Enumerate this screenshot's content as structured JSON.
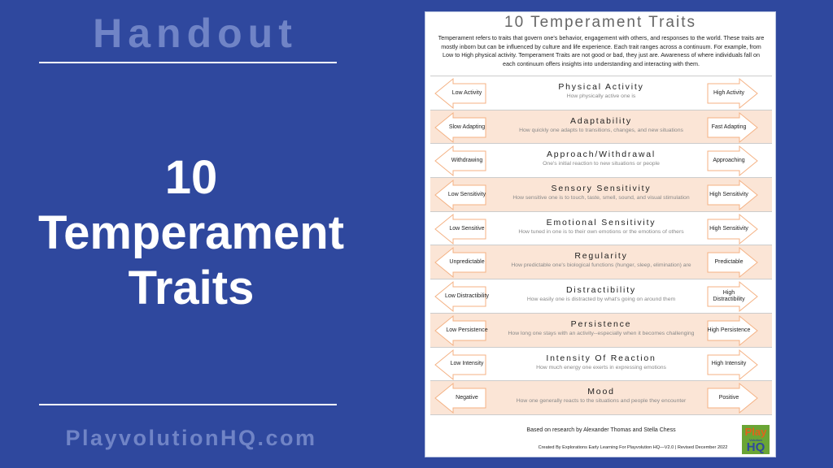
{
  "slide": {
    "heading": "Handout",
    "title_lines": [
      "10",
      "Temperament",
      "Traits"
    ],
    "website": "PlayvolutionHQ.com"
  },
  "document": {
    "title": "10 Temperament Traits",
    "intro": "Temperament refers to traits that govern one's behavior, engagement with others, and responses to the world. These traits are mostly inborn but can be influenced by culture and life experience. Each trait ranges across a continuum. For example, from Low to High physical activity. Temperament Traits are not good or bad, they just are. Awareness of where individuals fall on each continuum offers insights into understanding and interacting with them.",
    "traits": [
      {
        "name": "Physical Activity",
        "desc": "How physically active one is",
        "low": "Low Activity",
        "high": "High Activity"
      },
      {
        "name": "Adaptability",
        "desc": "How quickly one adapts to transitions, changes, and new situations",
        "low": "Slow Adapting",
        "high": "Fast Adapting"
      },
      {
        "name": "Approach/Withdrawal",
        "desc": "One's initial reaction to new situations or people",
        "low": "Withdrawing",
        "high": "Approaching"
      },
      {
        "name": "Sensory Sensitivity",
        "desc": "How sensitive one is to touch, taste, smell, sound, and visual stimulation",
        "low": "Low Sensitivity",
        "high": "High Sensitivity"
      },
      {
        "name": "Emotional Sensitivity",
        "desc": "How tuned in one is to their own emotions or the emotions of others",
        "low": "Low Sensitive",
        "high": "High Sensitivity"
      },
      {
        "name": "Regularity",
        "desc": "How predictable one's biological functions (hunger, sleep, elimination) are",
        "low": "Unpredictable",
        "high": "Predictable"
      },
      {
        "name": "Distractibility",
        "desc": "How easily one is distracted by what's going on around them",
        "low": "Low Distractibility",
        "high": "High Distractibility"
      },
      {
        "name": "Persistence",
        "desc": "How long one stays with an activity--especially when it becomes challenging",
        "low": "Low Persistence",
        "high": "High Persistence"
      },
      {
        "name": "Intensity Of Reaction",
        "desc": "How much energy one exerts in expressing emotions",
        "low": "Low Intensity",
        "high": "High Intensity"
      },
      {
        "name": "Mood",
        "desc": "How one generally reacts to the situations and people they encounter",
        "low": "Negative",
        "high": "Positive"
      }
    ],
    "based_on": "Based on research  by Alexander Thomas and Stella Chess",
    "credit": "Created By Explorations Early Learning For Playvolution HQ—V2.0 | Revised December  2022",
    "logo": {
      "top": "Play",
      "middle": "Volution",
      "bottom": "HQ"
    }
  },
  "colors": {
    "background": "#2f489e",
    "row_alt": "#fbe5d6",
    "arrow": "#f4b183"
  }
}
